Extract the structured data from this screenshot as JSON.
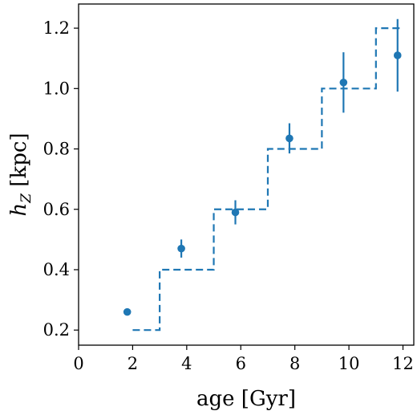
{
  "chart_data": {
    "type": "scatter",
    "xlabel": "age [Gyr]",
    "ylabel": {
      "main": "h",
      "sub": "Z",
      "unit": " [kpc]"
    },
    "xlim": [
      0,
      12.4
    ],
    "ylim": [
      0.15,
      1.28
    ],
    "xticks": [
      0,
      2,
      4,
      6,
      8,
      10,
      12
    ],
    "yticks": [
      0.2,
      0.4,
      0.6,
      0.8,
      1.0,
      1.2
    ],
    "xtick_labels": [
      "0",
      "2",
      "4",
      "6",
      "8",
      "10",
      "12"
    ],
    "ytick_labels": [
      "0.2",
      "0.4",
      "0.6",
      "0.8",
      "1.0",
      "1.2"
    ],
    "grid": false,
    "color": "#1f77b4",
    "series": [
      {
        "kind": "points_with_errorbars",
        "points": [
          {
            "x": 1.8,
            "y": 0.26,
            "err_low": 0.0,
            "err_high": 0.0
          },
          {
            "x": 3.8,
            "y": 0.47,
            "err_low": 0.03,
            "err_high": 0.03
          },
          {
            "x": 5.8,
            "y": 0.59,
            "err_low": 0.04,
            "err_high": 0.04
          },
          {
            "x": 7.8,
            "y": 0.835,
            "err_low": 0.05,
            "err_high": 0.05
          },
          {
            "x": 9.8,
            "y": 1.02,
            "err_low": 0.1,
            "err_high": 0.1
          },
          {
            "x": 11.8,
            "y": 1.11,
            "err_low": 0.12,
            "err_high": 0.12
          }
        ]
      },
      {
        "kind": "dashed_step",
        "steps": [
          {
            "x0": 2,
            "x1": 3,
            "y": 0.2
          },
          {
            "x0": 3,
            "x1": 5,
            "y": 0.4
          },
          {
            "x0": 5,
            "x1": 7,
            "y": 0.6
          },
          {
            "x0": 7,
            "x1": 9,
            "y": 0.8
          },
          {
            "x0": 9,
            "x1": 11,
            "y": 1.0
          },
          {
            "x0": 11,
            "x1": 12,
            "y": 1.2
          }
        ]
      }
    ]
  }
}
